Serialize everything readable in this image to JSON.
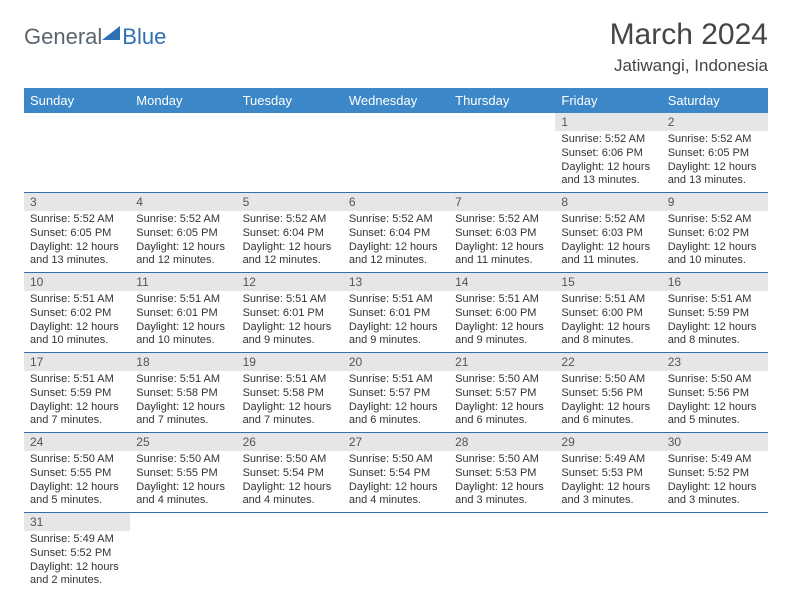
{
  "logo": {
    "part1": "General",
    "part2": "Blue"
  },
  "title": "March 2024",
  "location": "Jatiwangi, Indonesia",
  "colors": {
    "header_bg": "#3b87c8",
    "border": "#2f6fb3",
    "daynum_bg": "#e6e6e6"
  },
  "weekdays": [
    "Sunday",
    "Monday",
    "Tuesday",
    "Wednesday",
    "Thursday",
    "Friday",
    "Saturday"
  ],
  "weeks": [
    [
      null,
      null,
      null,
      null,
      null,
      {
        "n": "1",
        "sr": "Sunrise: 5:52 AM",
        "ss": "Sunset: 6:06 PM",
        "d1": "Daylight: 12 hours",
        "d2": "and 13 minutes."
      },
      {
        "n": "2",
        "sr": "Sunrise: 5:52 AM",
        "ss": "Sunset: 6:05 PM",
        "d1": "Daylight: 12 hours",
        "d2": "and 13 minutes."
      }
    ],
    [
      {
        "n": "3",
        "sr": "Sunrise: 5:52 AM",
        "ss": "Sunset: 6:05 PM",
        "d1": "Daylight: 12 hours",
        "d2": "and 13 minutes."
      },
      {
        "n": "4",
        "sr": "Sunrise: 5:52 AM",
        "ss": "Sunset: 6:05 PM",
        "d1": "Daylight: 12 hours",
        "d2": "and 12 minutes."
      },
      {
        "n": "5",
        "sr": "Sunrise: 5:52 AM",
        "ss": "Sunset: 6:04 PM",
        "d1": "Daylight: 12 hours",
        "d2": "and 12 minutes."
      },
      {
        "n": "6",
        "sr": "Sunrise: 5:52 AM",
        "ss": "Sunset: 6:04 PM",
        "d1": "Daylight: 12 hours",
        "d2": "and 12 minutes."
      },
      {
        "n": "7",
        "sr": "Sunrise: 5:52 AM",
        "ss": "Sunset: 6:03 PM",
        "d1": "Daylight: 12 hours",
        "d2": "and 11 minutes."
      },
      {
        "n": "8",
        "sr": "Sunrise: 5:52 AM",
        "ss": "Sunset: 6:03 PM",
        "d1": "Daylight: 12 hours",
        "d2": "and 11 minutes."
      },
      {
        "n": "9",
        "sr": "Sunrise: 5:52 AM",
        "ss": "Sunset: 6:02 PM",
        "d1": "Daylight: 12 hours",
        "d2": "and 10 minutes."
      }
    ],
    [
      {
        "n": "10",
        "sr": "Sunrise: 5:51 AM",
        "ss": "Sunset: 6:02 PM",
        "d1": "Daylight: 12 hours",
        "d2": "and 10 minutes."
      },
      {
        "n": "11",
        "sr": "Sunrise: 5:51 AM",
        "ss": "Sunset: 6:01 PM",
        "d1": "Daylight: 12 hours",
        "d2": "and 10 minutes."
      },
      {
        "n": "12",
        "sr": "Sunrise: 5:51 AM",
        "ss": "Sunset: 6:01 PM",
        "d1": "Daylight: 12 hours",
        "d2": "and 9 minutes."
      },
      {
        "n": "13",
        "sr": "Sunrise: 5:51 AM",
        "ss": "Sunset: 6:01 PM",
        "d1": "Daylight: 12 hours",
        "d2": "and 9 minutes."
      },
      {
        "n": "14",
        "sr": "Sunrise: 5:51 AM",
        "ss": "Sunset: 6:00 PM",
        "d1": "Daylight: 12 hours",
        "d2": "and 9 minutes."
      },
      {
        "n": "15",
        "sr": "Sunrise: 5:51 AM",
        "ss": "Sunset: 6:00 PM",
        "d1": "Daylight: 12 hours",
        "d2": "and 8 minutes."
      },
      {
        "n": "16",
        "sr": "Sunrise: 5:51 AM",
        "ss": "Sunset: 5:59 PM",
        "d1": "Daylight: 12 hours",
        "d2": "and 8 minutes."
      }
    ],
    [
      {
        "n": "17",
        "sr": "Sunrise: 5:51 AM",
        "ss": "Sunset: 5:59 PM",
        "d1": "Daylight: 12 hours",
        "d2": "and 7 minutes."
      },
      {
        "n": "18",
        "sr": "Sunrise: 5:51 AM",
        "ss": "Sunset: 5:58 PM",
        "d1": "Daylight: 12 hours",
        "d2": "and 7 minutes."
      },
      {
        "n": "19",
        "sr": "Sunrise: 5:51 AM",
        "ss": "Sunset: 5:58 PM",
        "d1": "Daylight: 12 hours",
        "d2": "and 7 minutes."
      },
      {
        "n": "20",
        "sr": "Sunrise: 5:51 AM",
        "ss": "Sunset: 5:57 PM",
        "d1": "Daylight: 12 hours",
        "d2": "and 6 minutes."
      },
      {
        "n": "21",
        "sr": "Sunrise: 5:50 AM",
        "ss": "Sunset: 5:57 PM",
        "d1": "Daylight: 12 hours",
        "d2": "and 6 minutes."
      },
      {
        "n": "22",
        "sr": "Sunrise: 5:50 AM",
        "ss": "Sunset: 5:56 PM",
        "d1": "Daylight: 12 hours",
        "d2": "and 6 minutes."
      },
      {
        "n": "23",
        "sr": "Sunrise: 5:50 AM",
        "ss": "Sunset: 5:56 PM",
        "d1": "Daylight: 12 hours",
        "d2": "and 5 minutes."
      }
    ],
    [
      {
        "n": "24",
        "sr": "Sunrise: 5:50 AM",
        "ss": "Sunset: 5:55 PM",
        "d1": "Daylight: 12 hours",
        "d2": "and 5 minutes."
      },
      {
        "n": "25",
        "sr": "Sunrise: 5:50 AM",
        "ss": "Sunset: 5:55 PM",
        "d1": "Daylight: 12 hours",
        "d2": "and 4 minutes."
      },
      {
        "n": "26",
        "sr": "Sunrise: 5:50 AM",
        "ss": "Sunset: 5:54 PM",
        "d1": "Daylight: 12 hours",
        "d2": "and 4 minutes."
      },
      {
        "n": "27",
        "sr": "Sunrise: 5:50 AM",
        "ss": "Sunset: 5:54 PM",
        "d1": "Daylight: 12 hours",
        "d2": "and 4 minutes."
      },
      {
        "n": "28",
        "sr": "Sunrise: 5:50 AM",
        "ss": "Sunset: 5:53 PM",
        "d1": "Daylight: 12 hours",
        "d2": "and 3 minutes."
      },
      {
        "n": "29",
        "sr": "Sunrise: 5:49 AM",
        "ss": "Sunset: 5:53 PM",
        "d1": "Daylight: 12 hours",
        "d2": "and 3 minutes."
      },
      {
        "n": "30",
        "sr": "Sunrise: 5:49 AM",
        "ss": "Sunset: 5:52 PM",
        "d1": "Daylight: 12 hours",
        "d2": "and 3 minutes."
      }
    ],
    [
      {
        "n": "31",
        "sr": "Sunrise: 5:49 AM",
        "ss": "Sunset: 5:52 PM",
        "d1": "Daylight: 12 hours",
        "d2": "and 2 minutes."
      },
      null,
      null,
      null,
      null,
      null,
      null
    ]
  ]
}
